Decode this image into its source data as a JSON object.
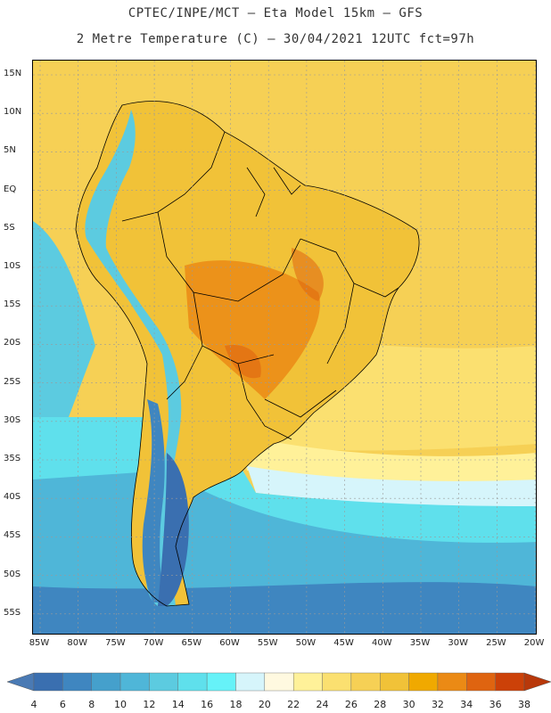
{
  "header": {
    "line1": "CPTEC/INPE/MCT –  Eta Model 15km – GFS",
    "line2": "2 Metre Temperature (C) – 30/04/2021 12UTC fct=97h"
  },
  "axes": {
    "latitudes": [
      "15N",
      "10N",
      "5N",
      "EQ",
      "5S",
      "10S",
      "15S",
      "20S",
      "25S",
      "30S",
      "35S",
      "40S",
      "45S",
      "50S",
      "55S"
    ],
    "longitudes": [
      "85W",
      "80W",
      "75W",
      "70W",
      "65W",
      "60W",
      "55W",
      "50W",
      "45W",
      "40W",
      "35W",
      "30W",
      "25W",
      "20W"
    ]
  },
  "colorbar": {
    "labels": [
      "4",
      "6",
      "8",
      "10",
      "12",
      "14",
      "16",
      "18",
      "20",
      "22",
      "24",
      "26",
      "28",
      "30",
      "32",
      "34",
      "36",
      "38"
    ],
    "colors": [
      "#3a6fb0",
      "#3f86c0",
      "#45a0cc",
      "#4fb6d8",
      "#5ccbe0",
      "#5fe0ec",
      "#66f2f8",
      "#d6f5fb",
      "#fff9e0",
      "#fff199",
      "#fbe070",
      "#f6d055",
      "#f1c238",
      "#f0a900",
      "#eb8a15",
      "#df6410",
      "#cc4108"
    ],
    "end_low_color": "#4a7ab4",
    "end_high_color": "#b8380a"
  },
  "map_colors": {
    "ocean_warm": "#f6d055",
    "ocean_mid": "#fbe070",
    "ocean_pale": "#fff199",
    "ocean_cool": "#5fe0ec",
    "ocean_cold": "#4fb6d8",
    "ocean_colder": "#3f86c0",
    "land_base": "#f1c238",
    "land_hot": "#eb8a15",
    "andes_cool": "#5ccbe0",
    "andes_cold": "#3a6fb0",
    "border": "#000000",
    "grid": "#9a9a9a"
  }
}
